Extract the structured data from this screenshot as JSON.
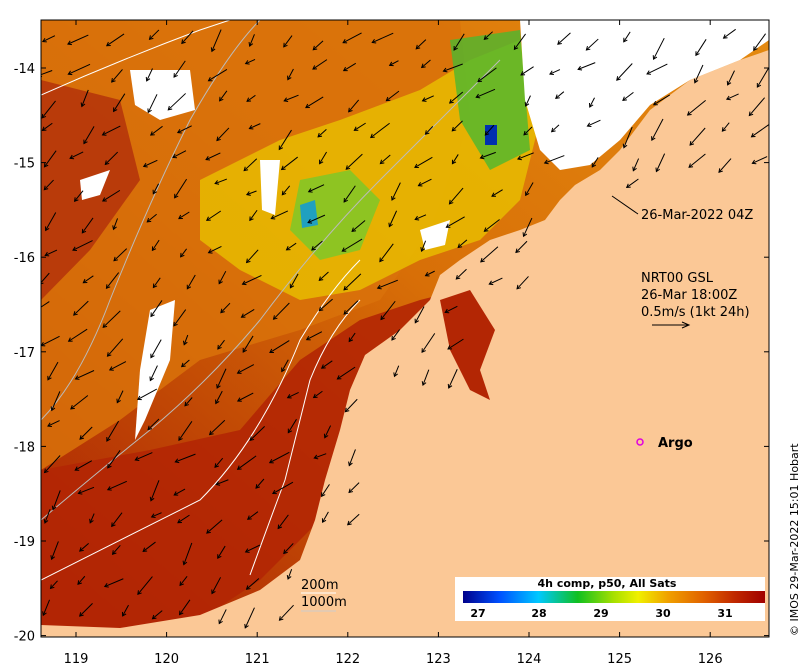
{
  "map": {
    "lon_ticks": [
      "119",
      "120",
      "121",
      "122",
      "123",
      "124",
      "125",
      "126"
    ],
    "lat_ticks": [
      "-14",
      "-15",
      "-16",
      "-17",
      "-18",
      "-19",
      "-20"
    ],
    "timestamp_label": "26-Mar-2022 04Z",
    "current_info": [
      "NRT00 GSL",
      "26-Mar 18:00Z",
      "0.5m/s (1kt 24h)"
    ],
    "argo_label": "Argo",
    "contour_legend": [
      "200m",
      "1000m"
    ],
    "side_credit": "© IMOS 29-Mar-2022 15:01 Hobart",
    "colorbar": {
      "title": "4h comp, p50, All Sats",
      "ticks": [
        "27",
        "28",
        "29",
        "30",
        "31"
      ]
    },
    "colors": {
      "land": "#fbc896",
      "sst_warm": "#a81c04",
      "sst_mid": "#d96a06",
      "sst_cool": "#e2e200",
      "sst_cold": "#10a810",
      "argo": "#e000e0"
    }
  }
}
